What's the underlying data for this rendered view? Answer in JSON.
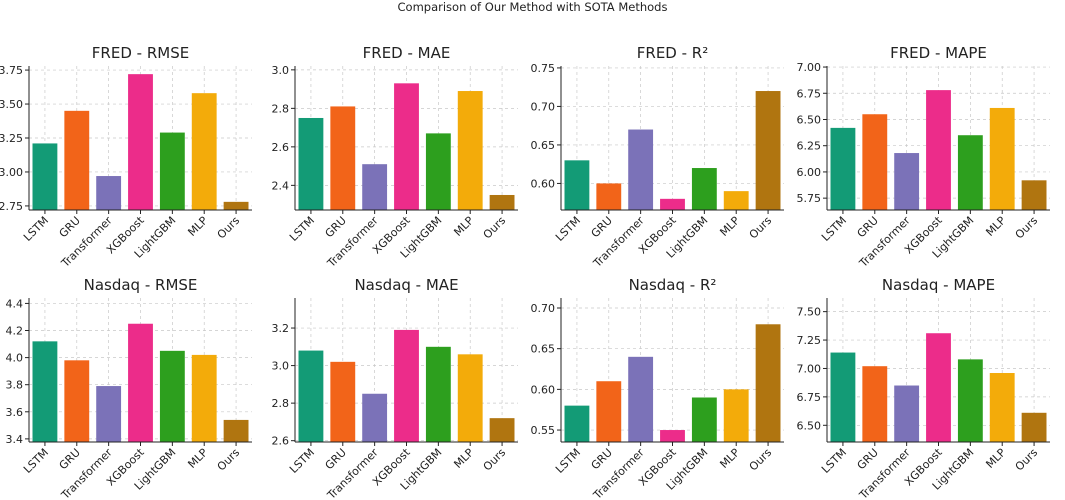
{
  "figure_title": "Comparison of Our Method with SOTA Methods",
  "categories": [
    "LSTM",
    "GRU",
    "Transformer",
    "XGBoost",
    "LightGBM",
    "MLP",
    "Ours"
  ],
  "colors": [
    "#139b76",
    "#f26419",
    "#7b72b8",
    "#ec2c8a",
    "#2d9f1e",
    "#f3ab0a",
    "#b07510"
  ],
  "chart_data": [
    {
      "type": "bar",
      "title": "FRED - RMSE",
      "values": [
        3.21,
        3.45,
        2.97,
        3.72,
        3.29,
        3.58,
        2.78
      ],
      "ylim": [
        2.72,
        3.78
      ],
      "yticks": [
        2.75,
        3.0,
        3.25,
        3.5,
        3.75
      ],
      "ytick_labels": [
        "2.75",
        "3.00",
        "3.25",
        "3.50",
        "3.75"
      ]
    },
    {
      "type": "bar",
      "title": "FRED - MAE",
      "values": [
        2.75,
        2.81,
        2.51,
        2.93,
        2.67,
        2.89,
        2.35
      ],
      "ylim": [
        2.272,
        3.02
      ],
      "yticks": [
        2.4,
        2.6,
        2.8,
        3.0
      ],
      "ytick_labels": [
        "2.4",
        "2.6",
        "2.8",
        "3.0"
      ]
    },
    {
      "type": "bar",
      "title": "FRED - R²",
      "values": [
        0.63,
        0.6,
        0.67,
        0.58,
        0.62,
        0.59,
        0.72
      ],
      "ylim": [
        0.5655,
        0.7525
      ],
      "yticks": [
        0.6,
        0.65,
        0.7,
        0.75
      ],
      "ytick_labels": [
        "0.60",
        "0.65",
        "0.70",
        "0.75"
      ]
    },
    {
      "type": "bar",
      "title": "FRED - MAPE",
      "values": [
        6.42,
        6.55,
        6.18,
        6.78,
        6.35,
        6.61,
        5.92
      ],
      "ylim": [
        5.637,
        7.01
      ],
      "yticks": [
        5.75,
        6.0,
        6.25,
        6.5,
        6.75,
        7.0
      ],
      "ytick_labels": [
        "5.75",
        "6.00",
        "6.25",
        "6.50",
        "6.75",
        "7.00"
      ]
    },
    {
      "type": "bar",
      "title": "Nasdaq - RMSE",
      "values": [
        4.12,
        3.98,
        3.79,
        4.25,
        4.05,
        4.02,
        3.54
      ],
      "ylim": [
        3.377,
        4.44
      ],
      "yticks": [
        3.4,
        3.6,
        3.8,
        4.0,
        4.2,
        4.4
      ],
      "ytick_labels": [
        "3.4",
        "3.6",
        "3.8",
        "4.0",
        "4.2",
        "4.4"
      ]
    },
    {
      "type": "bar",
      "title": "Nasdaq - MAE",
      "values": [
        3.08,
        3.02,
        2.85,
        3.19,
        3.1,
        3.06,
        2.72
      ],
      "ylim": [
        2.593,
        3.36
      ],
      "yticks": [
        2.6,
        2.8,
        3.0,
        3.2
      ],
      "ytick_labels": [
        "2.6",
        "2.8",
        "3.0",
        "3.2"
      ]
    },
    {
      "type": "bar",
      "title": "Nasdaq - R²",
      "values": [
        0.58,
        0.61,
        0.64,
        0.55,
        0.59,
        0.6,
        0.68
      ],
      "ylim": [
        0.5353,
        0.7123
      ],
      "yticks": [
        0.55,
        0.6,
        0.65,
        0.7
      ],
      "ytick_labels": [
        "0.55",
        "0.60",
        "0.65",
        "0.70"
      ]
    },
    {
      "type": "bar",
      "title": "Nasdaq - MAPE",
      "values": [
        7.14,
        7.02,
        6.85,
        7.31,
        7.08,
        6.96,
        6.61
      ],
      "ylim": [
        6.353,
        7.62
      ],
      "yticks": [
        6.5,
        6.75,
        7.0,
        7.25,
        7.5
      ],
      "ytick_labels": [
        "6.50",
        "6.75",
        "7.00",
        "7.25",
        "7.50"
      ]
    }
  ]
}
